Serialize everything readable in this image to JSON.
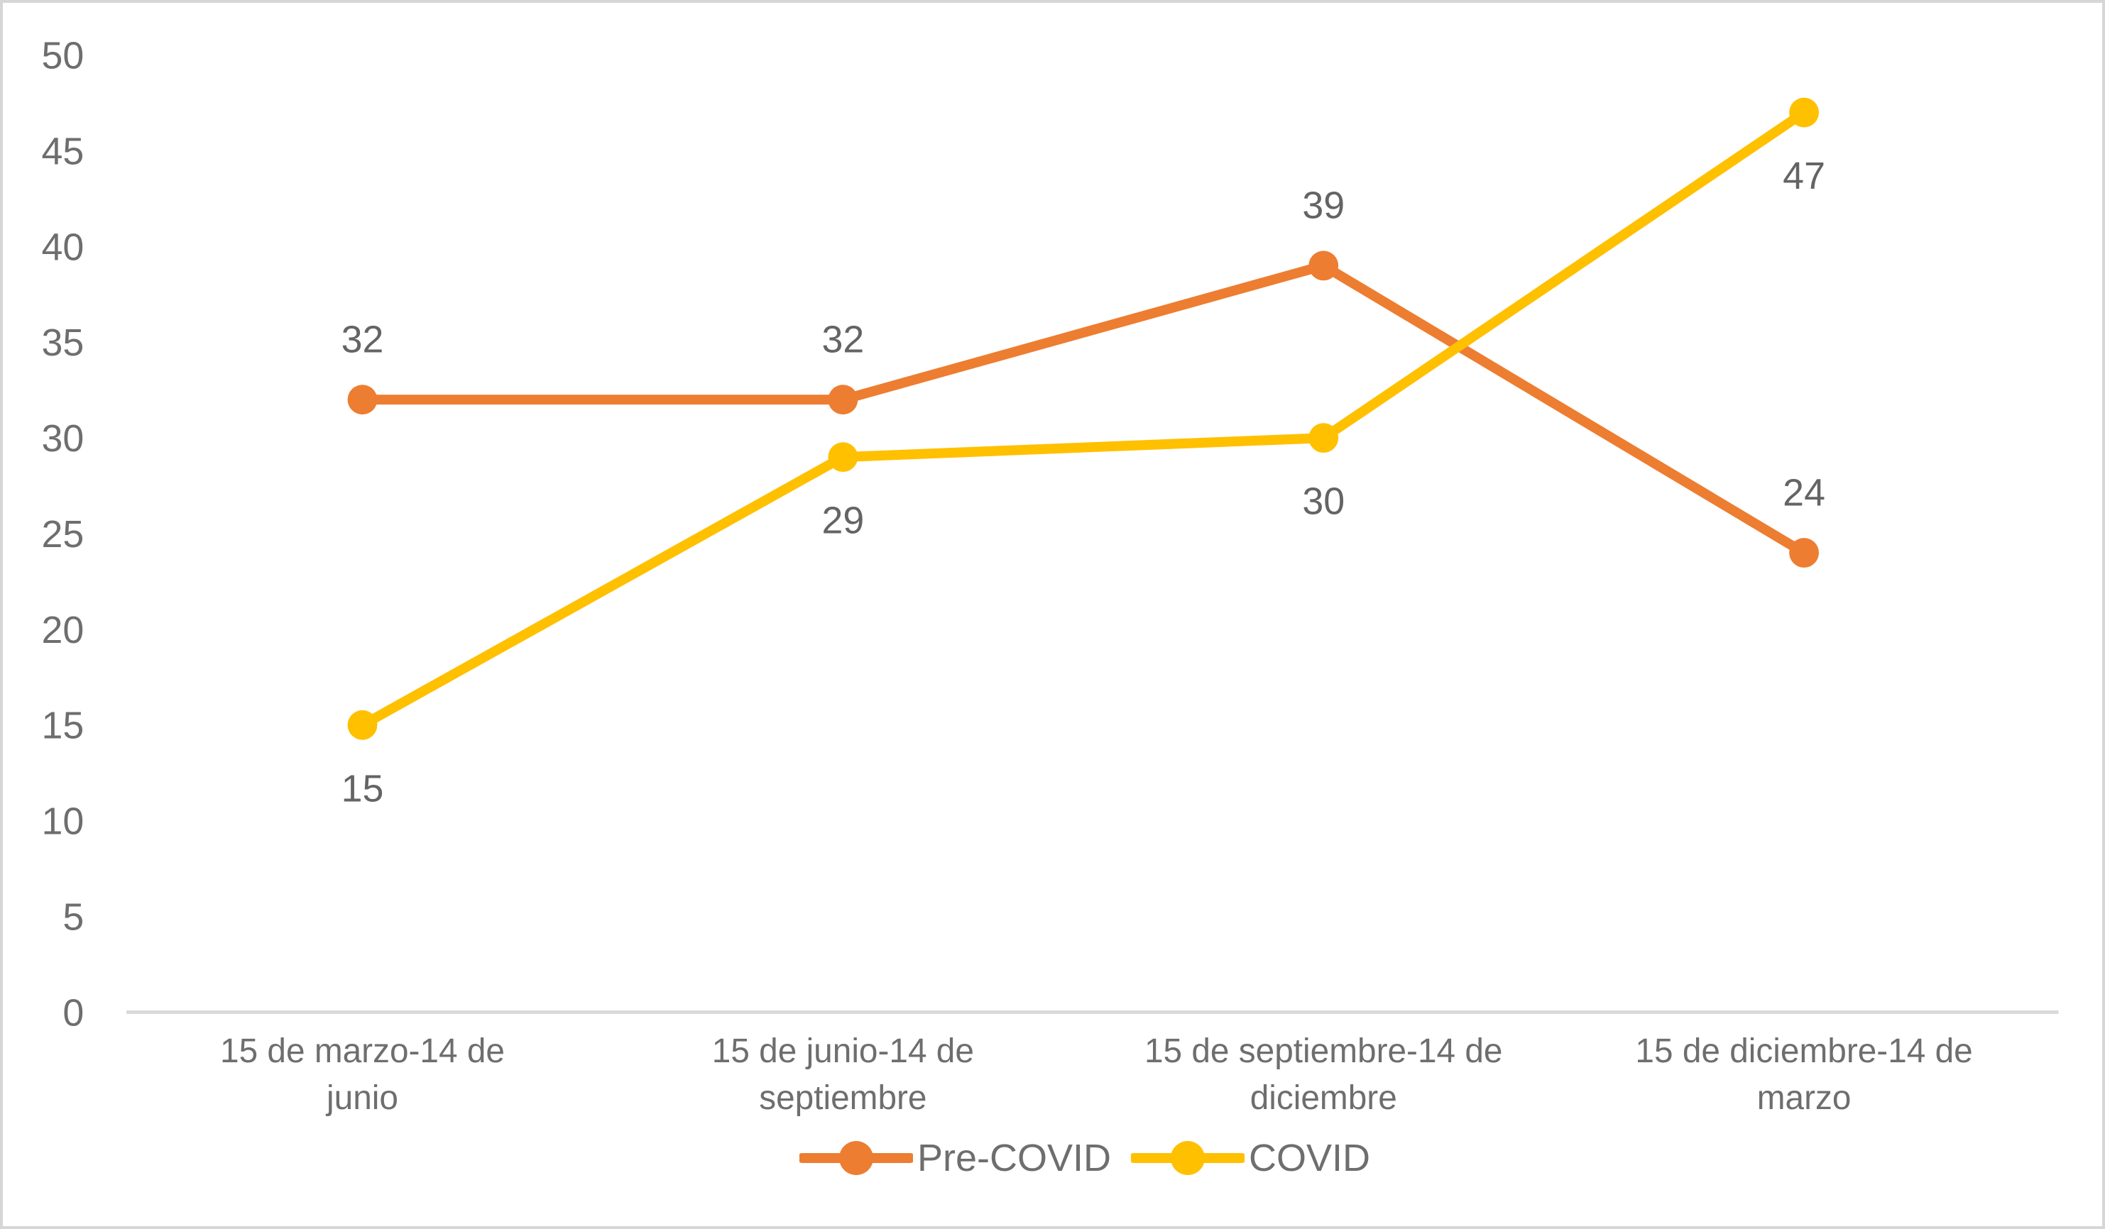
{
  "chart_data": {
    "type": "line",
    "title": "",
    "xlabel": "",
    "ylabel": "",
    "grid": false,
    "legend_position": "bottom-center",
    "background_color": "#FFFFFF",
    "axis_line_color": "#D9D9D9",
    "text_color": "#6E6E6E",
    "ylim": [
      0,
      50
    ],
    "yticks": [
      0,
      5,
      10,
      15,
      20,
      25,
      30,
      35,
      40,
      45,
      50
    ],
    "categories": [
      "15 de marzo-14 de junio",
      "15 de junio-14 de septiembre",
      "15 de septiembre-14 de diciembre",
      "15 de diciembre-14 de marzo"
    ],
    "categories_lines": [
      [
        "15 de marzo-14 de",
        "junio"
      ],
      [
        "15 de junio-14 de",
        "septiembre"
      ],
      [
        "15 de septiembre-14 de",
        "diciembre"
      ],
      [
        "15 de diciembre-14 de",
        "marzo"
      ]
    ],
    "series": [
      {
        "name": "Pre-COVID",
        "color": "#ED7D31",
        "values": [
          32,
          32,
          39,
          24
        ],
        "data_labels": [
          "32",
          "32",
          "39",
          "24"
        ],
        "label_position": "above",
        "marker": "circle"
      },
      {
        "name": "COVID",
        "color": "#FFC000",
        "values": [
          15,
          29,
          30,
          47
        ],
        "data_labels": [
          "15",
          "29",
          "30",
          "47"
        ],
        "label_position": "below",
        "marker": "circle"
      }
    ]
  }
}
